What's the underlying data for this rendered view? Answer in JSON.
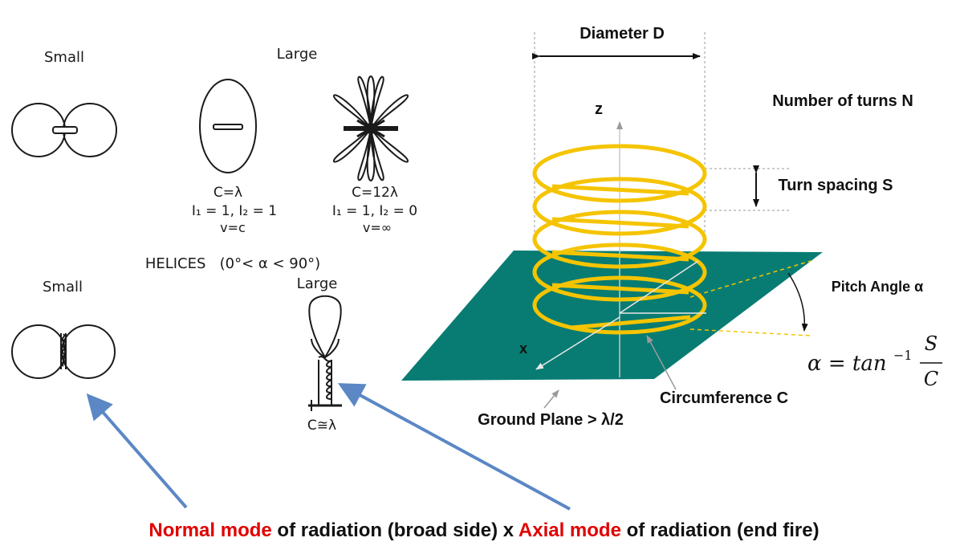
{
  "left_panel": {
    "top_row": {
      "small_label": "Small",
      "large_label": "Large",
      "pattern1": {
        "line1": "C=λ",
        "line2": "I₁ = 1,  I₂ = 1",
        "line3": "v=c"
      },
      "pattern2": {
        "line1": "C=12λ",
        "line2": "I₁ = 1,  I₂ = 0",
        "line3": "v=∞"
      }
    },
    "helices_caption": "HELICES   (0°< α < 90°)",
    "bottom_row": {
      "small_label": "Small",
      "large_label": "Large",
      "large_caption": "C≅λ"
    }
  },
  "right_panel": {
    "diameter_label": "Diameter D",
    "z_label": "z",
    "x_label": "x",
    "turns_label": "Number of turns N",
    "spacing_label": "Turn spacing S",
    "pitch_label": "Pitch Angle α",
    "circumference_label": "Circumference C",
    "ground_label": "Ground Plane > λ/2",
    "formula": {
      "lhs": "α = tan",
      "exp": "−1",
      "numerator": "S",
      "denominator": "C"
    }
  },
  "caption": {
    "part1": "Normal mode",
    "part2": " of radiation (broad side) x ",
    "part3": "Axial mode",
    "part4": " of radiation (end fire)"
  },
  "colors": {
    "helix": "#f5c400",
    "ground_plane": "#087c73",
    "arrow": "#5b87c5",
    "highlight_red": "#e00000"
  }
}
